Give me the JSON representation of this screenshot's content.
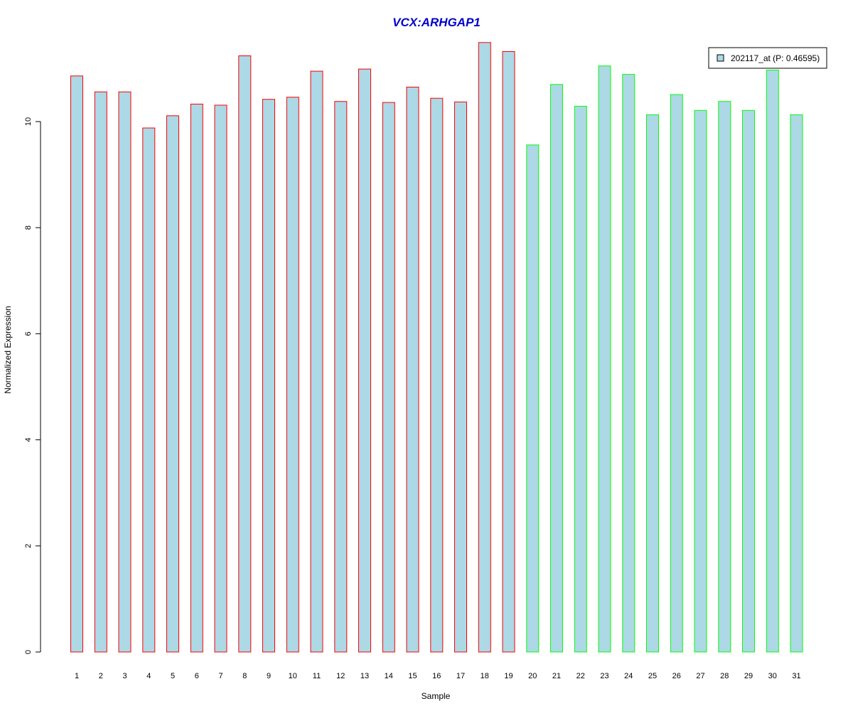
{
  "chart_data": {
    "type": "bar",
    "title": "VCX:ARHGAP1",
    "xlabel": "Sample",
    "ylabel": "Normalized Expression",
    "ylim": [
      0,
      11.5
    ],
    "yticks": [
      0,
      2,
      4,
      6,
      8,
      10
    ],
    "categories": [
      "1",
      "2",
      "3",
      "4",
      "5",
      "6",
      "7",
      "8",
      "9",
      "10",
      "11",
      "12",
      "13",
      "14",
      "15",
      "16",
      "17",
      "18",
      "19",
      "20",
      "21",
      "22",
      "23",
      "24",
      "25",
      "26",
      "27",
      "28",
      "29",
      "30",
      "31"
    ],
    "values": [
      10.86,
      10.56,
      10.56,
      9.88,
      10.11,
      10.33,
      10.31,
      11.24,
      10.42,
      10.46,
      10.95,
      10.38,
      10.99,
      10.36,
      10.65,
      10.44,
      10.37,
      11.49,
      11.32,
      9.56,
      10.7,
      10.29,
      11.05,
      10.89,
      10.13,
      10.51,
      10.21,
      10.38,
      10.21,
      10.97,
      10.13
    ],
    "groups": [
      "red",
      "red",
      "red",
      "red",
      "red",
      "red",
      "red",
      "red",
      "red",
      "red",
      "red",
      "red",
      "red",
      "red",
      "red",
      "red",
      "red",
      "red",
      "red",
      "green",
      "green",
      "green",
      "green",
      "green",
      "green",
      "green",
      "green",
      "green",
      "green",
      "green",
      "green"
    ],
    "legend": {
      "label": "202117_at (P: 0.46595)",
      "placement": "top-right"
    },
    "colors": {
      "fill": "#add8e6",
      "title": "#0000cd",
      "red": "#ff0000",
      "green": "#00ff00",
      "axis": "#000000"
    },
    "grid": false
  }
}
